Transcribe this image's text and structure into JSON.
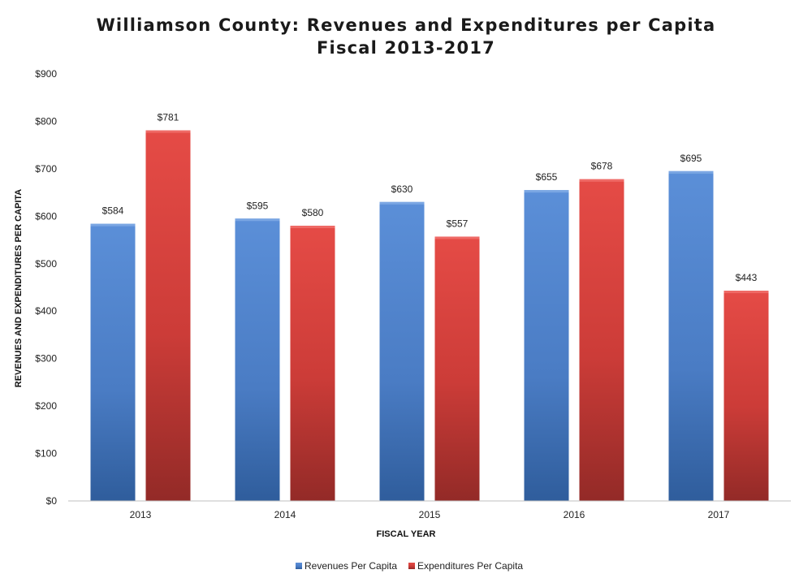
{
  "chart_data": {
    "type": "bar",
    "title": "Williamson County: Revenues and Expenditures per Capita",
    "subtitle": "Fiscal 2013-2017",
    "xlabel": "FISCAL YEAR",
    "ylabel": "REVENUES AND EXPENDITURES PER CAPITA",
    "categories": [
      "2013",
      "2014",
      "2015",
      "2016",
      "2017"
    ],
    "series": [
      {
        "name": "Revenues Per Capita",
        "values": [
          584,
          595,
          630,
          655,
          695
        ],
        "labels": [
          "$584",
          "$595",
          "$630",
          "$655",
          "$695"
        ],
        "color": "#4f81c9"
      },
      {
        "name": "Expenditures Per Capita",
        "values": [
          781,
          580,
          557,
          678,
          443
        ],
        "labels": [
          "$781",
          "$580",
          "$557",
          "$678",
          "$443"
        ],
        "color": "#d9403d"
      }
    ],
    "ylim": [
      0,
      900
    ],
    "yticks": [
      0,
      100,
      200,
      300,
      400,
      500,
      600,
      700,
      800,
      900
    ],
    "ytick_labels": [
      "$0",
      "$100",
      "$200",
      "$300",
      "$400",
      "$500",
      "$600",
      "$700",
      "$800",
      "$900"
    ],
    "grid": false,
    "legend": "bottom"
  }
}
